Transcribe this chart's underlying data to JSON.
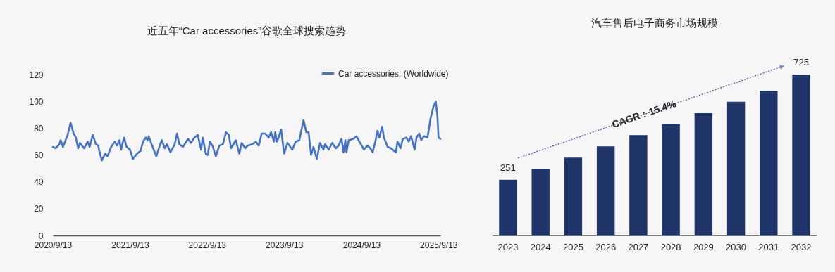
{
  "chart_data": [
    {
      "type": "line",
      "title": "近五年“Car accessories”谷歌全球搜索趋势",
      "legend": "top right",
      "x": [
        "2020-09-13",
        "2020-09-27",
        "2020-10-14",
        "2020-10-20",
        "2020-10-31",
        "2020-11-22",
        "2020-12-06",
        "2020-12-20",
        "2020-12-31",
        "2021-01-11",
        "2021-01-19",
        "2021-02-08",
        "2021-02-25",
        "2021-03-06",
        "2021-03-21",
        "2021-04-05",
        "2021-04-16",
        "2021-04-21",
        "2021-05-03",
        "2021-05-19",
        "2021-05-30",
        "2021-06-16",
        "2021-07-03",
        "2021-07-14",
        "2021-07-25",
        "2021-08-02",
        "2021-08-16",
        "2021-08-28",
        "2021-09-13",
        "2021-09-27",
        "2021-10-17",
        "2021-11-02",
        "2021-11-14",
        "2021-11-27",
        "2021-12-06",
        "2021-12-11",
        "2021-12-22",
        "2022-01-16",
        "2022-01-30",
        "2022-02-11",
        "2022-02-25",
        "2022-03-07",
        "2022-03-24",
        "2022-04-13",
        "2022-04-24",
        "2022-05-05",
        "2022-05-22",
        "2022-06-15",
        "2022-06-28",
        "2022-07-16",
        "2022-07-31",
        "2022-08-16",
        "2022-08-24",
        "2022-09-07",
        "2022-09-16",
        "2022-09-27",
        "2022-10-11",
        "2022-10-25",
        "2022-11-10",
        "2022-11-27",
        "2022-12-12",
        "2022-12-25",
        "2023-01-05",
        "2023-01-16",
        "2023-01-27",
        "2023-02-13",
        "2023-02-24",
        "2023-03-13",
        "2023-03-24",
        "2023-04-15",
        "2023-05-02",
        "2023-05-16",
        "2023-05-30",
        "2023-06-15",
        "2023-07-02",
        "2023-07-13",
        "2023-07-27",
        "2023-08-02",
        "2023-08-10",
        "2023-08-18",
        "2023-08-30",
        "2023-09-13",
        "2023-09-29",
        "2023-10-22",
        "2023-11-07",
        "2023-11-24",
        "2023-12-14",
        "2023-12-27",
        "2024-01-07",
        "2024-01-19",
        "2024-01-30",
        "2024-02-15",
        "2024-03-01",
        "2024-03-17",
        "2024-03-25",
        "2024-04-11",
        "2024-04-28",
        "2024-05-15",
        "2024-05-28",
        "2024-06-11",
        "2024-06-20",
        "2024-06-29",
        "2024-07-04",
        "2024-07-15",
        "2024-08-06",
        "2024-08-21",
        "2024-09-03",
        "2024-09-25",
        "2024-10-12",
        "2024-10-25",
        "2024-11-05",
        "2024-11-18",
        "2024-11-28",
        "2024-12-07",
        "2024-12-20",
        "2024-12-29",
        "2025-01-15",
        "2025-01-31",
        "2025-02-23",
        "2025-03-03",
        "2025-03-17",
        "2025-03-28",
        "2025-04-14",
        "2025-04-25",
        "2025-05-06",
        "2025-05-23",
        "2025-06-01",
        "2025-06-14",
        "2025-06-23",
        "2025-07-06",
        "2025-07-23",
        "2025-08-06",
        "2025-08-20",
        "2025-08-31",
        "2025-09-08",
        "2025-09-13",
        "2025-09-22"
      ],
      "series": [
        {
          "name": "Car accessories: (Worldwide)",
          "color": "#4472c4",
          "values": [
            66,
            65,
            68,
            71,
            66,
            75,
            84,
            76,
            73,
            65,
            69,
            65,
            70,
            66,
            75,
            68,
            67,
            63,
            56,
            61,
            59,
            66,
            70,
            67,
            71,
            64,
            73,
            66,
            64,
            57,
            61,
            63,
            70,
            73,
            71,
            74,
            69,
            59,
            66,
            71,
            65,
            68,
            62,
            68,
            76,
            68,
            66,
            72,
            69,
            73,
            75,
            64,
            73,
            61,
            60,
            70,
            66,
            59,
            67,
            68,
            77,
            75,
            65,
            68,
            71,
            61,
            69,
            65,
            67,
            68,
            70,
            67,
            76,
            76,
            73,
            77,
            70,
            77,
            70,
            73,
            79,
            61,
            69,
            64,
            70,
            71,
            86,
            77,
            77,
            60,
            66,
            57,
            69,
            64,
            68,
            64,
            69,
            65,
            67,
            72,
            62,
            71,
            62,
            71,
            72,
            74,
            70,
            64,
            67,
            65,
            62,
            70,
            78,
            73,
            81,
            73,
            66,
            65,
            62,
            70,
            65,
            72,
            73,
            70,
            74,
            64,
            73,
            76,
            71,
            74,
            73,
            87,
            96,
            100,
            89,
            73,
            72
          ]
        }
      ],
      "xlim": [
        "2020-09-13",
        "2025-09-22"
      ],
      "xticks": [
        {
          "value": "2020-09-13",
          "label": "2020/9/13"
        },
        {
          "value": "2021-09-13",
          "label": "2021/9/13"
        },
        {
          "value": "2022-09-13",
          "label": "2022/9/13"
        },
        {
          "value": "2023-09-13",
          "label": "2023/9/13"
        },
        {
          "value": "2024-09-13",
          "label": "2024/9/13"
        },
        {
          "value": "2025-09-13",
          "label": "2025/9/13"
        }
      ],
      "ylim": [
        0,
        120
      ],
      "yticks": [
        0,
        20,
        40,
        60,
        80,
        100,
        120
      ]
    },
    {
      "type": "bar",
      "title": "汽车售后电子商务市场规模",
      "color": "#1f3569",
      "categories": [
        "2023",
        "2024",
        "2025",
        "2026",
        "2027",
        "2028",
        "2029",
        "2030",
        "2031",
        "2032"
      ],
      "values": [
        251,
        301,
        351,
        401,
        452,
        502,
        551,
        602,
        652,
        725
      ],
      "value_labels": [
        "251",
        null,
        null,
        null,
        null,
        null,
        null,
        null,
        null,
        "725"
      ],
      "annotations": [
        "CAGR：15.4%"
      ]
    }
  ]
}
